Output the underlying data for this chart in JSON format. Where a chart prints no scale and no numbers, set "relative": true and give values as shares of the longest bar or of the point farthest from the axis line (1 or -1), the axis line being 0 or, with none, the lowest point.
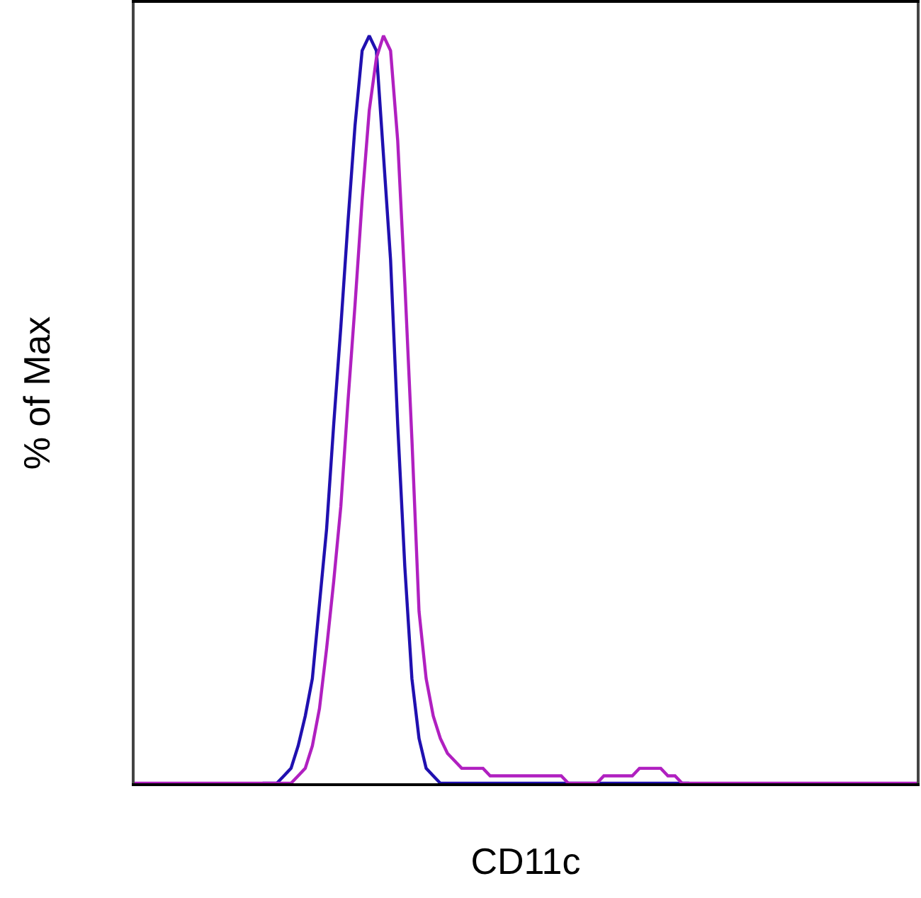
{
  "chart_data": {
    "type": "line",
    "relative": true,
    "xlabel": "CD11c",
    "ylabel": "% of Max",
    "categories": [
      null,
      null,
      null,
      null,
      null,
      null,
      null,
      null,
      null,
      null,
      null,
      null,
      null,
      null,
      null,
      null,
      null,
      null,
      null,
      null,
      null,
      null,
      null,
      null,
      null,
      null,
      null,
      null,
      null,
      null,
      null,
      null,
      null,
      null,
      null,
      null,
      null,
      null,
      null,
      null,
      null,
      null,
      null,
      null,
      null,
      null,
      null,
      null,
      null,
      null,
      null,
      null,
      null,
      null,
      null,
      null,
      null,
      null,
      null,
      null,
      null,
      null,
      null,
      null,
      null,
      null,
      null,
      null,
      null,
      null,
      null,
      null,
      null,
      null,
      null,
      null,
      null,
      null,
      null,
      null,
      null,
      null,
      null,
      null,
      null,
      null,
      null,
      null,
      null,
      null,
      null,
      null,
      null,
      null,
      null,
      null,
      null,
      null,
      null,
      null,
      null,
      null,
      null,
      null,
      null,
      null,
      null,
      null,
      null,
      null,
      null
    ],
    "series": [
      {
        "color": "#2010b0",
        "values": [
          null,
          null,
          null,
          null,
          null,
          null,
          null,
          null,
          null,
          null,
          null,
          null,
          null,
          null,
          null,
          null,
          null,
          null,
          0,
          0,
          0,
          0.01,
          0.02,
          0.05,
          0.09,
          0.14,
          0.24,
          0.34,
          0.48,
          0.61,
          0.75,
          0.88,
          0.98,
          1,
          0.98,
          0.84,
          0.7,
          0.48,
          0.29,
          0.14,
          0.06,
          0.02,
          0.01,
          0,
          0,
          0,
          0,
          0,
          0,
          0,
          0,
          0,
          0,
          0,
          0,
          0,
          0,
          0,
          0,
          0,
          0,
          0,
          0,
          0,
          0,
          0,
          0,
          0,
          0,
          0,
          0,
          0,
          0,
          0,
          0,
          0,
          0,
          0,
          0,
          null,
          null,
          null,
          null,
          null,
          null,
          null,
          null,
          null,
          null,
          null,
          null,
          null,
          null,
          null,
          null,
          null,
          null,
          null,
          null,
          null,
          null,
          null,
          null,
          null,
          null,
          null,
          null,
          null,
          null,
          null,
          null
        ]
      },
      {
        "color": "#b020c0",
        "values": [
          0,
          0,
          0,
          0,
          0,
          0,
          0,
          0,
          0,
          0,
          0,
          0,
          0,
          0,
          0,
          0,
          0,
          0,
          0,
          0,
          0,
          0,
          0,
          0.01,
          0.02,
          0.05,
          0.1,
          0.18,
          0.27,
          0.37,
          0.51,
          0.64,
          0.78,
          0.9,
          0.97,
          1,
          0.98,
          0.86,
          0.67,
          0.46,
          0.23,
          0.14,
          0.09,
          0.06,
          0.04,
          0.03,
          0.02,
          0.02,
          0.02,
          0.02,
          0.01,
          0.01,
          0.01,
          0.01,
          0.01,
          0.01,
          0.01,
          0.01,
          0.01,
          0.01,
          0.01,
          0,
          0,
          0,
          0,
          0,
          0.01,
          0.01,
          0.01,
          0.01,
          0.01,
          0.02,
          0.02,
          0.02,
          0.02,
          0.01,
          0.01,
          0,
          0,
          0,
          0,
          0,
          0,
          0,
          0,
          0,
          0,
          0,
          0,
          0,
          0,
          0,
          0,
          0,
          0,
          0,
          0,
          0,
          0,
          0,
          0,
          0,
          0,
          0,
          0,
          0,
          0,
          0,
          0,
          0,
          0
        ]
      }
    ],
    "marker": "none",
    "line_style": "solid"
  }
}
